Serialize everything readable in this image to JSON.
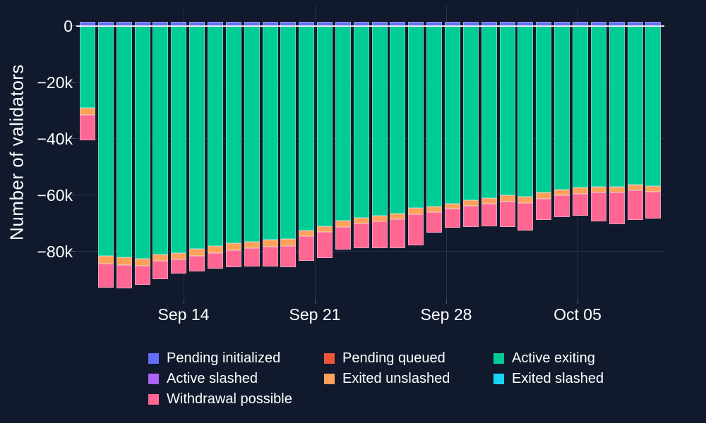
{
  "axes": {
    "y_title": "Number of validators",
    "y_tick_labels": [
      "0",
      "−20k",
      "−40k",
      "−60k",
      "−80k"
    ],
    "y_tick_values": [
      0,
      -20000,
      -40000,
      -60000,
      -80000
    ],
    "x_tick_labels": [
      "Sep 14",
      "Sep 21",
      "Sep 28",
      "Oct 05"
    ]
  },
  "colors": {
    "background": "#111a2d",
    "gridline": "#26304f",
    "zero_line": "#e8ebf2",
    "text": "#ffffff"
  },
  "chart_data": {
    "type": "bar",
    "stacked": true,
    "orientation": "vertical",
    "title": "",
    "xlabel": "",
    "ylabel": "Number of validators",
    "ylim": [
      -97000,
      7000
    ],
    "grid": true,
    "legend_position": "bottom",
    "categories": [
      "Sep 09",
      "Sep 10",
      "Sep 11",
      "Sep 12",
      "Sep 13",
      "Sep 14",
      "Sep 15",
      "Sep 16",
      "Sep 17",
      "Sep 18",
      "Sep 19",
      "Sep 20",
      "Sep 21",
      "Sep 22",
      "Sep 23",
      "Sep 24",
      "Sep 25",
      "Sep 26",
      "Sep 27",
      "Sep 28",
      "Sep 29",
      "Sep 30",
      "Oct 01",
      "Oct 02",
      "Oct 03",
      "Oct 04",
      "Oct 05",
      "Oct 06",
      "Oct 07",
      "Oct 08",
      "Oct 09",
      "Oct 10"
    ],
    "x_tick_labels": [
      "Sep 14",
      "Sep 21",
      "Sep 28",
      "Oct 05"
    ],
    "x_tick_indices": [
      5,
      12,
      19,
      26
    ],
    "series": [
      {
        "name": "Pending initialized",
        "color": "#636efa",
        "values": [
          1500,
          1500,
          1500,
          1500,
          1500,
          1500,
          1500,
          1500,
          1500,
          1500,
          1500,
          1500,
          1500,
          1500,
          1500,
          1500,
          1500,
          1500,
          1500,
          1500,
          1500,
          1500,
          1500,
          1500,
          1500,
          1500,
          1500,
          1500,
          1500,
          1500,
          1500,
          1500
        ]
      },
      {
        "name": "Pending queued",
        "color": "#ef553b",
        "values": [
          0,
          0,
          0,
          0,
          0,
          0,
          0,
          0,
          0,
          0,
          0,
          0,
          0,
          0,
          0,
          0,
          0,
          0,
          0,
          0,
          0,
          0,
          0,
          0,
          0,
          0,
          0,
          0,
          0,
          0,
          0,
          0
        ]
      },
      {
        "name": "Active exiting",
        "color": "#00cc96",
        "values": [
          -29100,
          -81700,
          -82100,
          -82500,
          -81100,
          -80600,
          -79200,
          -78100,
          -77100,
          -76500,
          -75900,
          -75500,
          -72500,
          -71000,
          -69200,
          -68200,
          -67400,
          -66500,
          -64600,
          -64000,
          -63200,
          -61900,
          -61000,
          -60200,
          -60700,
          -59000,
          -58000,
          -57400,
          -57100,
          -57100,
          -56300,
          -56900
        ]
      },
      {
        "name": "Active slashed",
        "color": "#ab63fa",
        "values": [
          0,
          0,
          0,
          0,
          0,
          0,
          0,
          0,
          0,
          0,
          0,
          0,
          0,
          0,
          0,
          0,
          0,
          0,
          0,
          0,
          0,
          0,
          0,
          0,
          0,
          0,
          0,
          0,
          0,
          0,
          0,
          0
        ]
      },
      {
        "name": "Exited unslashed",
        "color": "#ffa15a",
        "values": [
          -2500,
          -2800,
          -2700,
          -2700,
          -2400,
          -2400,
          -2500,
          -2500,
          -2500,
          -2300,
          -2500,
          -2500,
          -2100,
          -2200,
          -2100,
          -2000,
          -2100,
          -2100,
          -2300,
          -2100,
          -1800,
          -2100,
          -2000,
          -2200,
          -2300,
          -2300,
          -2200,
          -2200,
          -2100,
          -2100,
          -2100,
          -2100
        ]
      },
      {
        "name": "Exited slashed",
        "color": "#19d3f3",
        "values": [
          0,
          0,
          0,
          0,
          0,
          0,
          0,
          0,
          0,
          0,
          0,
          0,
          0,
          0,
          0,
          0,
          0,
          0,
          0,
          0,
          0,
          0,
          0,
          0,
          0,
          0,
          0,
          0,
          0,
          0,
          0,
          0
        ]
      },
      {
        "name": "Withdrawal possible",
        "color": "#ff6692",
        "values": [
          -9000,
          -8300,
          -8300,
          -6800,
          -6300,
          -4800,
          -5400,
          -5500,
          -6100,
          -6700,
          -7100,
          -7600,
          -8900,
          -9200,
          -8100,
          -8800,
          -9500,
          -10200,
          -11100,
          -7300,
          -6700,
          -7300,
          -8000,
          -9100,
          -9700,
          -7700,
          -7800,
          -7900,
          -10200,
          -11300,
          -10400,
          -9400
        ]
      }
    ]
  }
}
